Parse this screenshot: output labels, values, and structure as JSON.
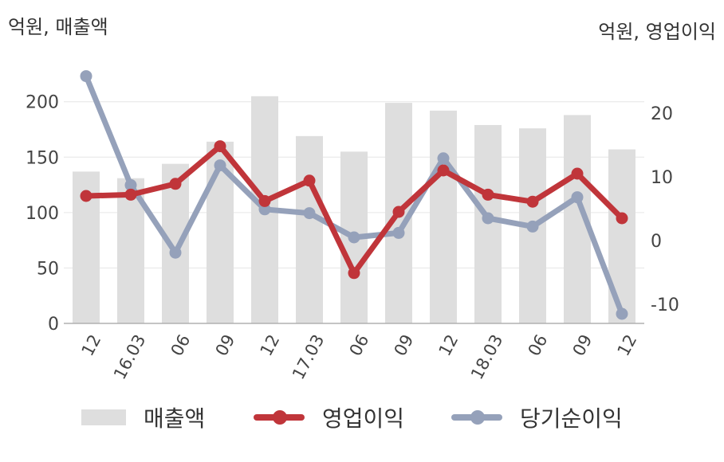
{
  "units": {
    "left": "억원, 매출액",
    "right": "억원, 영업이익"
  },
  "legend": {
    "revenue": "매출액",
    "operating": "영업이익",
    "net": "당기순이익"
  },
  "colors": {
    "revenue": "#dedede",
    "operating": "#c0353a",
    "net": "#95a1ba",
    "grid": "#e6e6e6",
    "axis": "#b0b0b0"
  },
  "chart_data": {
    "type": "bar",
    "categories": [
      "12",
      "16.03",
      "06",
      "09",
      "12",
      "17.03",
      "06",
      "09",
      "12",
      "18.03",
      "06",
      "09",
      "12"
    ],
    "series": [
      {
        "name": "매출액",
        "type": "bar",
        "axis": "left",
        "values": [
          137,
          131,
          144,
          164,
          205,
          169,
          155,
          199,
          192,
          179,
          176,
          188,
          157
        ]
      },
      {
        "name": "영업이익",
        "type": "line",
        "axis": "right",
        "values": [
          7,
          7.2,
          8.9,
          14.8,
          6.2,
          9.4,
          -5.1,
          4.5,
          11,
          7.2,
          6.1,
          10.5,
          3.5
        ]
      },
      {
        "name": "당기순이익",
        "type": "line",
        "axis": "right",
        "values": [
          25.8,
          8.7,
          -1.9,
          11.8,
          4.9,
          4.3,
          0.5,
          1.2,
          12.9,
          3.5,
          2.2,
          6.8,
          -11.5
        ]
      }
    ],
    "y_left": {
      "ticks": [
        0,
        50,
        100,
        150,
        200
      ],
      "range": [
        0,
        230
      ]
    },
    "y_right": {
      "ticks": [
        -10,
        0,
        10,
        20
      ],
      "range": [
        -13,
        27
      ]
    },
    "grid": true,
    "legend_position": "bottom"
  }
}
